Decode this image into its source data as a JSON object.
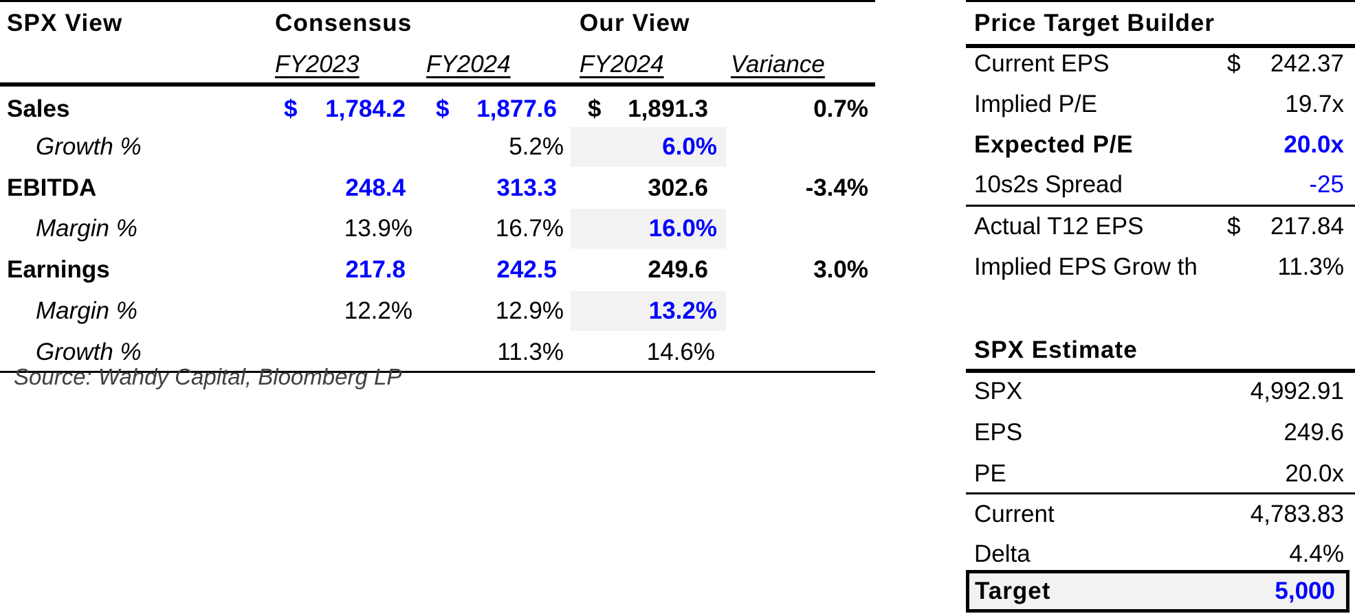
{
  "spx_view": {
    "title": "SPX View",
    "consensus_header": "Consensus",
    "our_view_header": "Our View",
    "col_fy2023": "FY2023",
    "col_fy2024": "FY2024",
    "col_our_fy2024": "FY2024",
    "col_variance": "Variance",
    "currency": "$",
    "rows": {
      "sales": {
        "label": "Sales",
        "fy2023": "1,784.2",
        "fy2024": "1,877.6",
        "our": "1,891.3",
        "variance": "0.7%"
      },
      "sales_growth": {
        "label": "Growth %",
        "fy2024": "5.2%",
        "our": "6.0%"
      },
      "ebitda": {
        "label": "EBITDA",
        "fy2023": "248.4",
        "fy2024": "313.3",
        "our": "302.6",
        "variance": "-3.4%"
      },
      "ebitda_margin": {
        "label": "Margin %",
        "fy2023": "13.9%",
        "fy2024": "16.7%",
        "our": "16.0%"
      },
      "earnings": {
        "label": "Earnings",
        "fy2023": "217.8",
        "fy2024": "242.5",
        "our": "249.6",
        "variance": "3.0%"
      },
      "earnings_margin": {
        "label": "Margin %",
        "fy2023": "12.2%",
        "fy2024": "12.9%",
        "our": "13.2%"
      },
      "earnings_growth": {
        "label": "Growth %",
        "fy2024": "11.3%",
        "our": "14.6%"
      }
    },
    "source": "Source: Wahdy Capital, Bloomberg LP"
  },
  "price_target_builder": {
    "title": "Price Target Builder",
    "current_eps": {
      "label": "Current EPS",
      "currency": "$",
      "value": "242.37"
    },
    "implied_pe": {
      "label": "Implied P/E",
      "value": "19.7x"
    },
    "expected_pe": {
      "label": "Expected P/E",
      "value": "20.0x"
    },
    "spread": {
      "label": "10s2s Spread",
      "value": "-25"
    },
    "actual_eps": {
      "label": "Actual T12 EPS",
      "currency": "$",
      "value": "217.84"
    },
    "implied_growth": {
      "label": "Implied EPS Grow th",
      "value": "11.3%"
    }
  },
  "spx_estimate": {
    "title": "SPX Estimate",
    "spx": {
      "label": "SPX",
      "value": "4,992.91"
    },
    "eps": {
      "label": "EPS",
      "value": "249.6"
    },
    "pe": {
      "label": "PE",
      "value": "20.0x"
    },
    "current": {
      "label": "Current",
      "value": "4,783.83"
    },
    "delta": {
      "label": "Delta",
      "value": "4.4%"
    },
    "target": {
      "label": "Target",
      "value": "5,000"
    }
  },
  "colors": {
    "input_blue": "#0000FF",
    "shade": "#f2f2f2",
    "rule": "#000000"
  }
}
